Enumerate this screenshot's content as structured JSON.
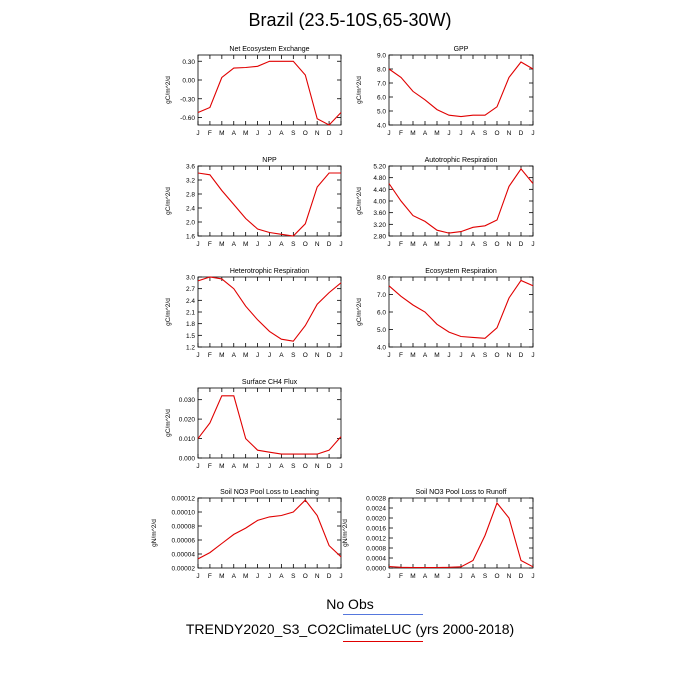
{
  "title": "Brazil (23.5-10S,65-30W)",
  "colors": {
    "model_line": "#e00000",
    "obs_line": "#5577dd",
    "axis": "#000000"
  },
  "legend": {
    "obs_label": "No Obs",
    "model_label": "TRENDY2020_S3_CO2ClimateLUC (yrs 2000-2018)"
  },
  "chart_data": [
    {
      "type": "line",
      "title": "Net Ecosystem Exchange",
      "ylabel": "gC/m^2/d",
      "categories": [
        "J",
        "F",
        "M",
        "A",
        "M",
        "J",
        "J",
        "A",
        "S",
        "O",
        "N",
        "D",
        "J"
      ],
      "yticks": [
        "0.30",
        "0.00",
        "-0.30",
        "-0.60"
      ],
      "ylim": [
        -0.72,
        0.4
      ],
      "series": [
        {
          "values": [
            -0.52,
            -0.44,
            0.04,
            0.19,
            0.2,
            0.22,
            0.3,
            0.3,
            0.3,
            0.08,
            -0.62,
            -0.72,
            -0.52
          ]
        }
      ]
    },
    {
      "type": "line",
      "title": "GPP",
      "ylabel": "gC/m^2/d",
      "categories": [
        "J",
        "F",
        "M",
        "A",
        "M",
        "J",
        "J",
        "A",
        "S",
        "O",
        "N",
        "D",
        "J"
      ],
      "yticks": [
        "9.0",
        "8.0",
        "7.0",
        "6.0",
        "5.0",
        "4.0"
      ],
      "ylim": [
        4.0,
        9.0
      ],
      "series": [
        {
          "values": [
            8.0,
            7.4,
            6.4,
            5.8,
            5.1,
            4.7,
            4.6,
            4.7,
            4.7,
            5.3,
            7.4,
            8.5,
            8.0
          ]
        }
      ]
    },
    {
      "type": "line",
      "title": "NPP",
      "ylabel": "gC/m^2/d",
      "categories": [
        "J",
        "F",
        "M",
        "A",
        "M",
        "J",
        "J",
        "A",
        "S",
        "O",
        "N",
        "D",
        "J"
      ],
      "yticks": [
        "3.6",
        "3.2",
        "2.8",
        "2.4",
        "2.0",
        "1.6"
      ],
      "ylim": [
        1.6,
        3.6
      ],
      "series": [
        {
          "values": [
            3.4,
            3.35,
            2.9,
            2.5,
            2.1,
            1.8,
            1.7,
            1.65,
            1.6,
            1.95,
            3.0,
            3.4,
            3.4
          ]
        }
      ]
    },
    {
      "type": "line",
      "title": "Autotrophic Respiration",
      "ylabel": "gC/m^2/d",
      "categories": [
        "J",
        "F",
        "M",
        "A",
        "M",
        "J",
        "J",
        "A",
        "S",
        "O",
        "N",
        "D",
        "J"
      ],
      "yticks": [
        "5.20",
        "4.80",
        "4.40",
        "4.00",
        "3.60",
        "3.20",
        "2.80"
      ],
      "ylim": [
        2.8,
        5.2
      ],
      "series": [
        {
          "values": [
            4.6,
            4.0,
            3.5,
            3.3,
            3.0,
            2.9,
            2.95,
            3.1,
            3.15,
            3.35,
            4.5,
            5.1,
            4.6
          ]
        }
      ]
    },
    {
      "type": "line",
      "title": "Heterotrophic Respiration",
      "ylabel": "gC/m^2/d",
      "categories": [
        "J",
        "F",
        "M",
        "A",
        "M",
        "J",
        "J",
        "A",
        "S",
        "O",
        "N",
        "D",
        "J"
      ],
      "yticks": [
        "3.0",
        "2.7",
        "2.4",
        "2.1",
        "1.8",
        "1.5",
        "1.2"
      ],
      "ylim": [
        1.2,
        3.0
      ],
      "series": [
        {
          "values": [
            2.9,
            3.0,
            2.95,
            2.7,
            2.25,
            1.9,
            1.6,
            1.4,
            1.35,
            1.75,
            2.3,
            2.6,
            2.85
          ]
        }
      ]
    },
    {
      "type": "line",
      "title": "Ecosystem Respiration",
      "ylabel": "gC/m^2/d",
      "categories": [
        "J",
        "F",
        "M",
        "A",
        "M",
        "J",
        "J",
        "A",
        "S",
        "O",
        "N",
        "D",
        "J"
      ],
      "yticks": [
        "8.0",
        "7.0",
        "6.0",
        "5.0",
        "4.0"
      ],
      "ylim": [
        4.0,
        8.0
      ],
      "series": [
        {
          "values": [
            7.5,
            6.9,
            6.4,
            6.0,
            5.3,
            4.85,
            4.6,
            4.55,
            4.5,
            5.1,
            6.8,
            7.8,
            7.5
          ]
        }
      ]
    },
    {
      "type": "line",
      "title": "Surface CH4 Flux",
      "ylabel": "gC/m^2/d",
      "categories": [
        "J",
        "F",
        "M",
        "A",
        "M",
        "J",
        "J",
        "A",
        "S",
        "O",
        "N",
        "D",
        "J"
      ],
      "yticks": [
        "0.030",
        "0.020",
        "0.010",
        "0.000"
      ],
      "ylim": [
        0.0,
        0.036
      ],
      "series": [
        {
          "values": [
            0.01,
            0.018,
            0.032,
            0.032,
            0.01,
            0.004,
            0.003,
            0.002,
            0.002,
            0.002,
            0.002,
            0.004,
            0.011
          ]
        }
      ]
    },
    {
      "type": "line",
      "title": "Soil NO3 Pool Loss to Leaching",
      "ylabel": "gN/m^2/d",
      "categories": [
        "J",
        "F",
        "M",
        "A",
        "M",
        "J",
        "J",
        "A",
        "S",
        "O",
        "N",
        "D",
        "J"
      ],
      "yticks": [
        "0.00012",
        "0.00010",
        "0.00008",
        "0.00006",
        "0.00004",
        "0.00002"
      ],
      "ylim": [
        2e-05,
        0.00012
      ],
      "series": [
        {
          "values": [
            3.3e-05,
            4.2e-05,
            5.5e-05,
            6.8e-05,
            7.7e-05,
            8.8e-05,
            9.3e-05,
            9.5e-05,
            0.0001,
            0.000117,
            9.5e-05,
            5.2e-05,
            3.6e-05
          ]
        }
      ]
    },
    {
      "type": "line",
      "title": "Soil NO3 Pool Loss to Runoff",
      "ylabel": "gN/m^2/d",
      "categories": [
        "J",
        "F",
        "M",
        "A",
        "M",
        "J",
        "J",
        "A",
        "S",
        "O",
        "N",
        "D",
        "J"
      ],
      "yticks": [
        "0.0028",
        "0.0024",
        "0.0020",
        "0.0016",
        "0.0012",
        "0.0008",
        "0.0004",
        "0.0000"
      ],
      "ylim": [
        0.0,
        0.0028
      ],
      "series": [
        {
          "values": [
            6e-05,
            3e-05,
            2e-05,
            2e-05,
            2e-05,
            3e-05,
            5e-05,
            0.0003,
            0.0013,
            0.0026,
            0.002,
            0.0003,
            5e-05
          ]
        }
      ]
    }
  ]
}
